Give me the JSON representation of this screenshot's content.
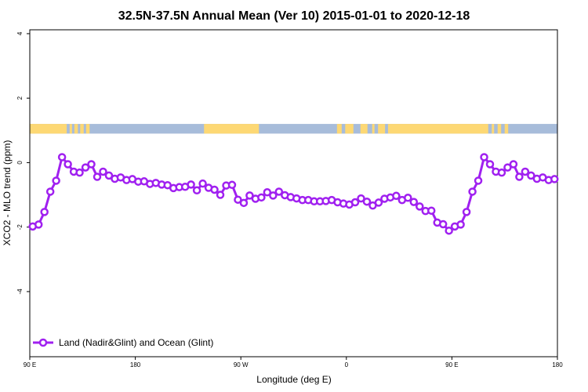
{
  "chart_data": {
    "type": "line",
    "title": "32.5N-37.5N Annual Mean (Ver 10)   2015-01-01 to 2020-12-18",
    "xlabel": "Longitude (deg E)",
    "ylabel": "XCO2 - MLO trend (ppm)",
    "xlim": [
      90,
      540
    ],
    "ylim": [
      -6.02,
      4.12
    ],
    "xticks": [
      {
        "value": 90,
        "label": "90 E"
      },
      {
        "value": 180,
        "label": "180"
      },
      {
        "value": 270,
        "label": "90 W"
      },
      {
        "value": 360,
        "label": "0"
      },
      {
        "value": 450,
        "label": "90 E"
      },
      {
        "value": 540,
        "label": "180"
      }
    ],
    "yticks": [
      {
        "value": 4,
        "label": "4"
      },
      {
        "value": 2,
        "label": "2"
      },
      {
        "value": 0,
        "label": "0"
      },
      {
        "value": -2,
        "label": "-2"
      },
      {
        "value": -4,
        "label": "-4"
      }
    ],
    "grid": false,
    "legend": {
      "placement": "bottom-left",
      "entries": [
        "Land (Nadir&Glint) and Ocean (Glint)"
      ]
    },
    "series": [
      {
        "name": "Land (Nadir&Glint) and Ocean (Glint)",
        "color": "#A020F0",
        "x_start": 92.5,
        "x_step": 5,
        "values": [
          -1.98,
          -1.92,
          -1.53,
          -0.9,
          -0.56,
          0.17,
          -0.05,
          -0.28,
          -0.31,
          -0.15,
          -0.05,
          -0.44,
          -0.28,
          -0.4,
          -0.5,
          -0.46,
          -0.54,
          -0.51,
          -0.59,
          -0.58,
          -0.66,
          -0.63,
          -0.68,
          -0.7,
          -0.79,
          -0.76,
          -0.75,
          -0.68,
          -0.86,
          -0.65,
          -0.78,
          -0.84,
          -1.0,
          -0.71,
          -0.69,
          -1.15,
          -1.25,
          -1.02,
          -1.12,
          -1.08,
          -0.92,
          -1.02,
          -0.9,
          -1.01,
          -1.07,
          -1.11,
          -1.16,
          -1.16,
          -1.2,
          -1.2,
          -1.19,
          -1.16,
          -1.23,
          -1.27,
          -1.3,
          -1.23,
          -1.11,
          -1.21,
          -1.33,
          -1.24,
          -1.12,
          -1.08,
          -1.03,
          -1.16,
          -1.09,
          -1.22,
          -1.36,
          -1.5,
          -1.49,
          -1.86,
          -1.91,
          -2.11,
          -1.98,
          -1.92,
          -1.53,
          -0.9,
          -0.56,
          0.17,
          -0.05,
          -0.28,
          -0.31,
          -0.15,
          -0.05,
          -0.44,
          -0.28,
          -0.4,
          -0.5,
          -0.46,
          -0.54,
          -0.51
        ]
      }
    ],
    "surface_bar": {
      "value_range": [
        0.9,
        1.2
      ],
      "ocean_color": "#A7BCDA",
      "land_color": "#FDD874",
      "land_segments": [
        [
          90,
          121.5
        ],
        [
          124,
          126
        ],
        [
          128,
          131
        ],
        [
          133,
          136
        ],
        [
          138,
          141
        ],
        [
          238.6,
          285.4
        ],
        [
          352,
          356
        ],
        [
          359,
          366
        ],
        [
          372,
          378
        ],
        [
          382,
          384
        ],
        [
          387,
          393
        ],
        [
          395.5,
          481
        ],
        [
          484,
          486
        ],
        [
          489,
          492
        ],
        [
          495,
          498
        ]
      ]
    }
  }
}
